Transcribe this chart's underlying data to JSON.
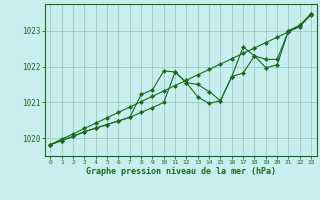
{
  "title": "Graphe pression niveau de la mer (hPa)",
  "background_color": "#c8eef0",
  "plot_bg_color": "#c8eef0",
  "grid_color": "#99ccbb",
  "line_color": "#1a6b1a",
  "marker_color": "#1a6b1a",
  "x_ticks": [
    0,
    1,
    2,
    3,
    4,
    5,
    6,
    7,
    8,
    9,
    10,
    11,
    12,
    13,
    14,
    15,
    16,
    17,
    18,
    19,
    20,
    21,
    22,
    23
  ],
  "ylim": [
    1019.5,
    1023.75
  ],
  "yticks": [
    1020,
    1021,
    1022,
    1023
  ],
  "series_straight": [
    1019.82,
    1019.97,
    1020.12,
    1020.27,
    1020.42,
    1020.57,
    1020.72,
    1020.87,
    1021.02,
    1021.17,
    1021.32,
    1021.47,
    1021.62,
    1021.77,
    1021.92,
    1022.07,
    1022.22,
    1022.37,
    1022.52,
    1022.67,
    1022.82,
    1022.97,
    1023.12,
    1023.45
  ],
  "series_upper": [
    1019.82,
    1019.93,
    1020.05,
    1020.18,
    1020.28,
    1020.38,
    1020.48,
    1020.58,
    1020.72,
    1020.85,
    1021.0,
    1021.85,
    1021.55,
    1021.5,
    1021.3,
    1021.05,
    1021.72,
    1022.55,
    1022.3,
    1022.2,
    1022.2,
    1023.0,
    1023.15,
    1023.48
  ],
  "series_lower": [
    1019.82,
    1019.93,
    1020.05,
    1020.18,
    1020.28,
    1020.38,
    1020.48,
    1020.58,
    1021.22,
    1021.35,
    1021.88,
    1021.85,
    1021.55,
    1021.15,
    1020.97,
    1021.05,
    1021.72,
    1021.82,
    1022.3,
    1021.97,
    1022.05,
    1023.0,
    1023.15,
    1023.48
  ]
}
